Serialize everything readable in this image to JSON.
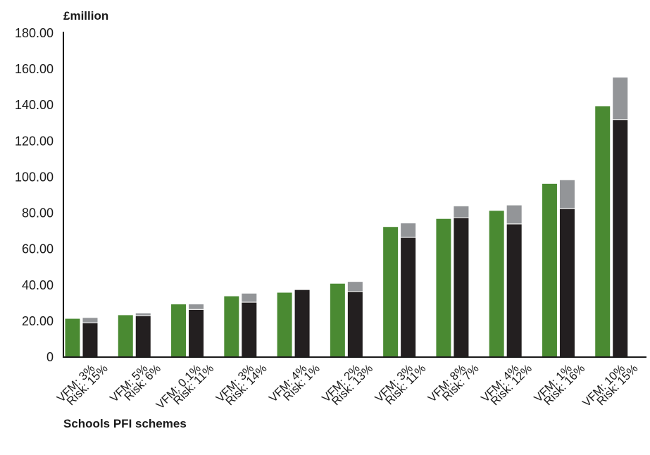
{
  "chart_data": {
    "type": "bar",
    "ylabel": "£million",
    "xlabel": "Schools PFI schemes",
    "ylim": [
      0,
      180
    ],
    "yticks": [
      0,
      20,
      40,
      60,
      80,
      100,
      120,
      140,
      160,
      180
    ],
    "ytick_labels": [
      "0",
      "20.00",
      "40.00",
      "60.00",
      "80.00",
      "100.00",
      "120.00",
      "140.00",
      "160.00",
      "180.00"
    ],
    "grid": false,
    "stacked_second_bar": true,
    "colors": {
      "green": "#4a8a32",
      "black": "#231f20",
      "grey": "#939598",
      "axis": "#1a1a1a"
    },
    "categories": [
      {
        "line1": "VFM: 3%",
        "line2": "Risk: 15%"
      },
      {
        "line1": "VFM: 5%",
        "line2": "Risk: 6%"
      },
      {
        "line1": "VFM: 0.1%",
        "line2": "Risk: 11%"
      },
      {
        "line1": "VFM: 3%",
        "line2": "Risk: 14%"
      },
      {
        "line1": "VFM: 4%",
        "line2": "Risk: 1%"
      },
      {
        "line1": "VFM: 2%",
        "line2": "Risk: 13%"
      },
      {
        "line1": "VFM: 3%",
        "line2": "Risk: 11%"
      },
      {
        "line1": "VFM: 8%",
        "line2": "Risk: 7%"
      },
      {
        "line1": "VFM: 4%",
        "line2": "Risk: 12%"
      },
      {
        "line1": "VFM: 1%",
        "line2": "Risk: 16%"
      },
      {
        "line1": "VFM: 10%",
        "line2": "Risk: 15%"
      }
    ],
    "series": [
      {
        "color": "green",
        "values": [
          21.5,
          23.5,
          29.5,
          34,
          36,
          41,
          72.5,
          77,
          81.5,
          96.5,
          139.5
        ]
      },
      {
        "color": "black",
        "values": [
          19,
          23,
          26.5,
          30.5,
          37.5,
          36.5,
          66.5,
          77.5,
          74,
          82.5,
          132
        ]
      },
      {
        "color": "grey",
        "stack_on": 1,
        "values": [
          3,
          1.5,
          3,
          5,
          0,
          5.5,
          8,
          6.5,
          10.5,
          16,
          23.5
        ]
      }
    ]
  }
}
